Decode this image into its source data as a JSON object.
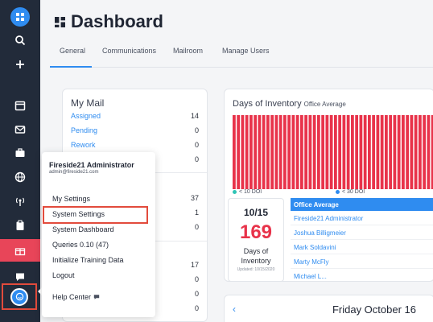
{
  "page": {
    "title": "Dashboard"
  },
  "tabs": [
    "General",
    "Communications",
    "Mailroom",
    "Manage Users"
  ],
  "my_mail": {
    "title": "My Mail",
    "rows": [
      {
        "label": "Assigned",
        "value": "14"
      },
      {
        "label": "Pending",
        "value": "0"
      },
      {
        "label": "Rework",
        "value": "0"
      }
    ],
    "partial_values": [
      "0",
      "37",
      "1",
      "0",
      "17",
      "0",
      "0",
      "0"
    ]
  },
  "inventory": {
    "title": "Days of Inventory",
    "subtitle": "Office Average",
    "legend": [
      {
        "label": "< 10 DOI",
        "color": "#2ec4b6"
      },
      {
        "label": "< 30 DOI",
        "color": "#2f8cf0"
      }
    ],
    "bar_color": "#e8334a",
    "bar_count": 48,
    "date": "10/15",
    "value": "169",
    "value_label_1": "Days of",
    "value_label_2": "Inventory",
    "updated": "Updated: 10/15/2020",
    "people_header": "Office Average",
    "people": [
      "Fireside21 Administrator",
      "Joshua Billigmeier",
      "Mark Soldavini",
      "Marty McFly",
      "Michael L..."
    ]
  },
  "calendar": {
    "prev": "‹",
    "date": "Friday October 16"
  },
  "user_menu": {
    "name": "Fireside21 Administrator",
    "email": "admin@fireside21.com",
    "items": [
      "My Settings",
      "System Settings",
      "System Dashboard",
      "Queries 0.10 (47)",
      "Initialize Training Data",
      "Logout"
    ],
    "help": "Help Center"
  },
  "colors": {
    "accent": "#2f8cf0",
    "sidebar": "#222b3a",
    "danger": "#e8334a",
    "highlight": "#e24b3c"
  }
}
